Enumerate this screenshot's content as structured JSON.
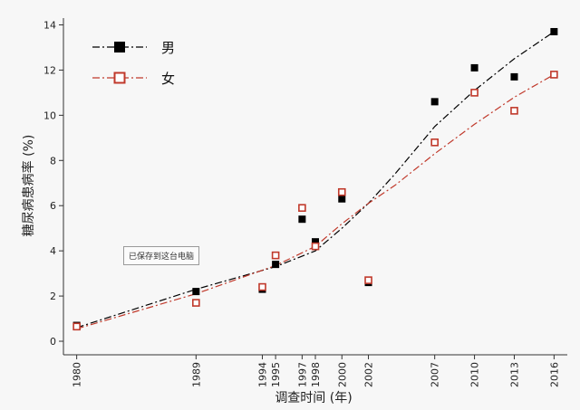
{
  "chart_data": {
    "type": "line",
    "title": "",
    "xlabel": "调查时间 (年)",
    "ylabel": "糖尿病患病率 (%)",
    "x_ticks": [
      1980,
      1989,
      1994,
      1995,
      1997,
      1998,
      2000,
      2002,
      2007,
      2010,
      2013,
      2016
    ],
    "y_ticks": [
      0,
      2,
      4,
      6,
      8,
      10,
      12,
      14
    ],
    "xlim": [
      1979,
      2017
    ],
    "ylim": [
      -0.6,
      14.3
    ],
    "grid": false,
    "legend_position": "top-left",
    "series": [
      {
        "name": "男",
        "color": "#000000",
        "marker": "filled-square",
        "line_style": "dash-dot",
        "points": [
          {
            "x": 1980,
            "y": 0.7
          },
          {
            "x": 1989,
            "y": 2.2
          },
          {
            "x": 1994,
            "y": 2.3
          },
          {
            "x": 1995,
            "y": 3.4
          },
          {
            "x": 1997,
            "y": 5.4
          },
          {
            "x": 1998,
            "y": 4.4
          },
          {
            "x": 2000,
            "y": 6.3
          },
          {
            "x": 2002,
            "y": 2.6
          },
          {
            "x": 2007,
            "y": 10.6
          },
          {
            "x": 2010,
            "y": 12.1
          },
          {
            "x": 2013,
            "y": 11.7
          },
          {
            "x": 2016,
            "y": 13.7
          }
        ],
        "fit": [
          {
            "x": 1980,
            "y": 0.6
          },
          {
            "x": 1989,
            "y": 2.3
          },
          {
            "x": 1995,
            "y": 3.3
          },
          {
            "x": 1998,
            "y": 4.0
          },
          {
            "x": 2000,
            "y": 5.0
          },
          {
            "x": 2002,
            "y": 6.1
          },
          {
            "x": 2004,
            "y": 7.4
          },
          {
            "x": 2007,
            "y": 9.5
          },
          {
            "x": 2010,
            "y": 11.1
          },
          {
            "x": 2013,
            "y": 12.5
          },
          {
            "x": 2016,
            "y": 13.7
          }
        ]
      },
      {
        "name": "女",
        "color": "#c0392b",
        "marker": "hollow-square",
        "line_style": "dash-dot",
        "points": [
          {
            "x": 1980,
            "y": 0.65
          },
          {
            "x": 1989,
            "y": 1.7
          },
          {
            "x": 1994,
            "y": 2.4
          },
          {
            "x": 1995,
            "y": 3.8
          },
          {
            "x": 1997,
            "y": 5.9
          },
          {
            "x": 1998,
            "y": 4.2
          },
          {
            "x": 2000,
            "y": 6.6
          },
          {
            "x": 2002,
            "y": 2.7
          },
          {
            "x": 2007,
            "y": 8.8
          },
          {
            "x": 2010,
            "y": 11.0
          },
          {
            "x": 2013,
            "y": 10.2
          },
          {
            "x": 2016,
            "y": 11.8
          }
        ],
        "fit": [
          {
            "x": 1980,
            "y": 0.55
          },
          {
            "x": 1989,
            "y": 2.1
          },
          {
            "x": 1995,
            "y": 3.35
          },
          {
            "x": 1998,
            "y": 4.2
          },
          {
            "x": 2000,
            "y": 5.2
          },
          {
            "x": 2002,
            "y": 6.1
          },
          {
            "x": 2004,
            "y": 6.9
          },
          {
            "x": 2007,
            "y": 8.3
          },
          {
            "x": 2010,
            "y": 9.6
          },
          {
            "x": 2013,
            "y": 10.8
          },
          {
            "x": 2016,
            "y": 11.8
          }
        ]
      }
    ]
  },
  "overlay": {
    "saved_badge": "已保存到这台电脑"
  }
}
